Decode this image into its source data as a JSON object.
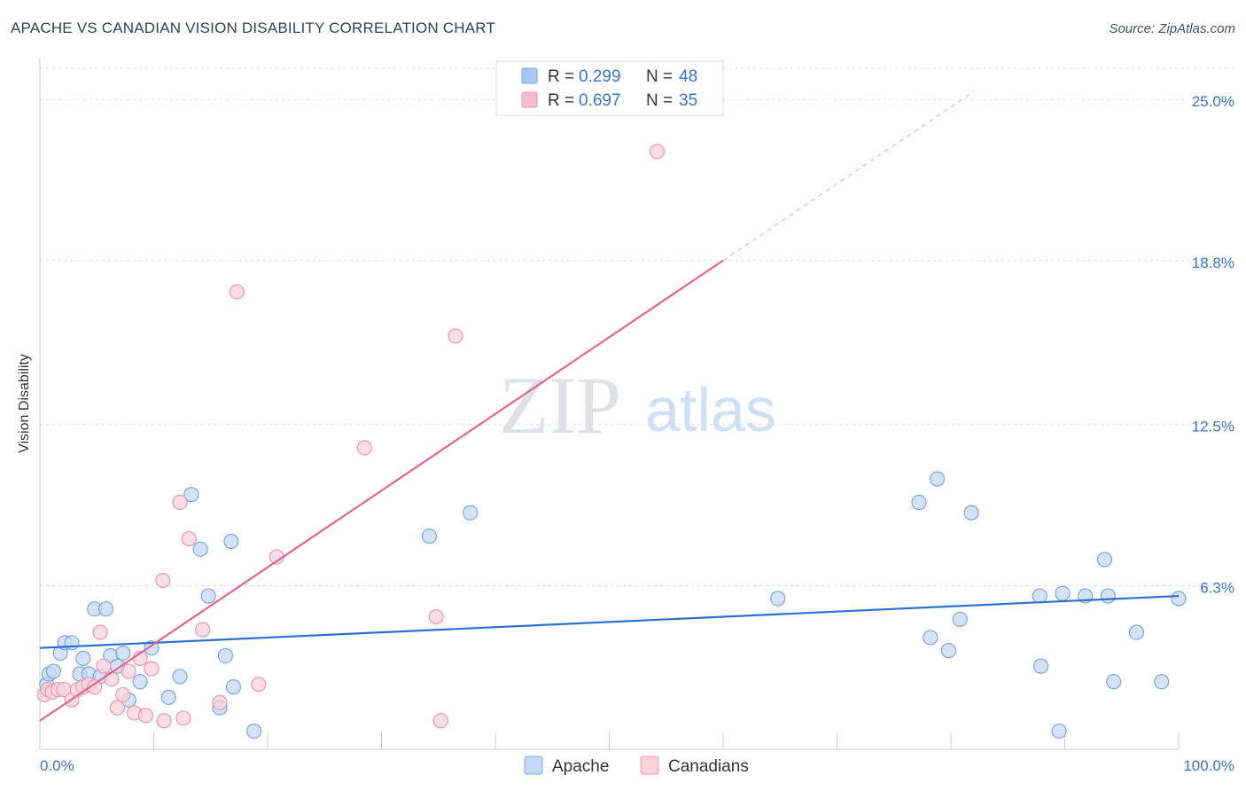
{
  "title": "APACHE VS CANADIAN VISION DISABILITY CORRELATION CHART",
  "source": "Source: ZipAtlas.com",
  "watermark": {
    "zip": "ZIP",
    "atlas": "atlas"
  },
  "legend_top": [
    {
      "r_label": "R =",
      "r_value": "0.299",
      "n_label": "N =",
      "n_value": "48",
      "color": "#a9c9f4"
    },
    {
      "r_label": "R =",
      "r_value": "0.697",
      "n_label": "N =",
      "n_value": "35",
      "color": "#f7b9cb"
    }
  ],
  "colors": {
    "blue_fill": "#c5daf6",
    "blue_stroke": "#7aa7e0",
    "blue_line": "#2d6fcf",
    "pink_fill": "#fad2de",
    "pink_stroke": "#eb97b2",
    "pink_line": "#e0678e",
    "value_text": "#3b74c9"
  },
  "chart_data": {
    "type": "scatter",
    "xlabel": "",
    "ylabel": "Vision Disability",
    "xlim": [
      0,
      100
    ],
    "ylim": [
      0,
      26.2
    ],
    "x_tick_labels": [
      "0.0%",
      "100.0%"
    ],
    "y_ticks": [
      6.3,
      12.5,
      18.8,
      25.0
    ],
    "y_tick_labels": [
      "6.3%",
      "12.5%",
      "18.8%",
      "25.0%"
    ],
    "series": [
      {
        "name": "Apache",
        "r": 0.299,
        "n": 48,
        "trend": {
          "x0": 0,
          "y0": 3.9,
          "x1": 100,
          "y1": 5.9,
          "x_solid_end": 100
        },
        "points": [
          [
            0.6,
            2.5
          ],
          [
            0.8,
            2.9
          ],
          [
            1.2,
            3.0
          ],
          [
            1.8,
            3.7
          ],
          [
            2.2,
            4.1
          ],
          [
            2.8,
            4.1
          ],
          [
            3.5,
            2.9
          ],
          [
            3.8,
            3.5
          ],
          [
            4.3,
            2.9
          ],
          [
            4.8,
            5.4
          ],
          [
            5.3,
            2.8
          ],
          [
            5.8,
            5.4
          ],
          [
            6.2,
            3.6
          ],
          [
            6.8,
            3.2
          ],
          [
            7.3,
            3.7
          ],
          [
            7.8,
            1.9
          ],
          [
            8.8,
            2.6
          ],
          [
            9.8,
            3.9
          ],
          [
            11.3,
            2.0
          ],
          [
            12.3,
            2.8
          ],
          [
            13.3,
            9.8
          ],
          [
            14.1,
            7.7
          ],
          [
            14.8,
            5.9
          ],
          [
            15.8,
            1.6
          ],
          [
            16.3,
            3.6
          ],
          [
            16.8,
            8.0
          ],
          [
            17.0,
            2.4
          ],
          [
            18.8,
            0.7
          ],
          [
            34.2,
            8.2
          ],
          [
            37.8,
            9.1
          ],
          [
            64.8,
            5.8
          ],
          [
            77.2,
            9.5
          ],
          [
            78.2,
            4.3
          ],
          [
            78.8,
            10.4
          ],
          [
            79.8,
            3.8
          ],
          [
            80.8,
            5.0
          ],
          [
            81.8,
            9.1
          ],
          [
            87.8,
            5.9
          ],
          [
            87.9,
            3.2
          ],
          [
            89.5,
            0.7
          ],
          [
            89.8,
            6.0
          ],
          [
            91.8,
            5.9
          ],
          [
            93.5,
            7.3
          ],
          [
            93.8,
            5.9
          ],
          [
            94.3,
            2.6
          ],
          [
            96.3,
            4.5
          ],
          [
            98.5,
            2.6
          ],
          [
            100.0,
            5.8
          ]
        ]
      },
      {
        "name": "Canadians",
        "r": 0.697,
        "n": 35,
        "trend": {
          "x0": 0,
          "y0": 1.1,
          "x1": 82,
          "y1": 25.3,
          "x_solid_end": 60
        },
        "points": [
          [
            0.4,
            2.1
          ],
          [
            0.7,
            2.3
          ],
          [
            1.1,
            2.2
          ],
          [
            1.6,
            2.3
          ],
          [
            2.1,
            2.3
          ],
          [
            2.8,
            1.9
          ],
          [
            3.3,
            2.3
          ],
          [
            3.8,
            2.4
          ],
          [
            4.3,
            2.5
          ],
          [
            4.8,
            2.4
          ],
          [
            5.3,
            4.5
          ],
          [
            5.6,
            3.2
          ],
          [
            6.3,
            2.7
          ],
          [
            6.8,
            1.6
          ],
          [
            7.3,
            2.1
          ],
          [
            7.8,
            3.0
          ],
          [
            8.3,
            1.4
          ],
          [
            8.8,
            3.5
          ],
          [
            9.3,
            1.3
          ],
          [
            9.8,
            3.1
          ],
          [
            10.8,
            6.5
          ],
          [
            10.9,
            1.1
          ],
          [
            12.3,
            9.5
          ],
          [
            12.6,
            1.2
          ],
          [
            13.1,
            8.1
          ],
          [
            14.3,
            4.6
          ],
          [
            15.8,
            1.8
          ],
          [
            17.3,
            17.6
          ],
          [
            19.2,
            2.5
          ],
          [
            20.8,
            7.4
          ],
          [
            28.5,
            11.6
          ],
          [
            34.8,
            5.1
          ],
          [
            35.2,
            1.1
          ],
          [
            36.5,
            15.9
          ],
          [
            54.2,
            23.0
          ]
        ]
      }
    ]
  },
  "legend_bottom": [
    {
      "label": "Apache",
      "color": "#c5daf6"
    },
    {
      "label": "Canadians",
      "color": "#fad2de"
    }
  ]
}
